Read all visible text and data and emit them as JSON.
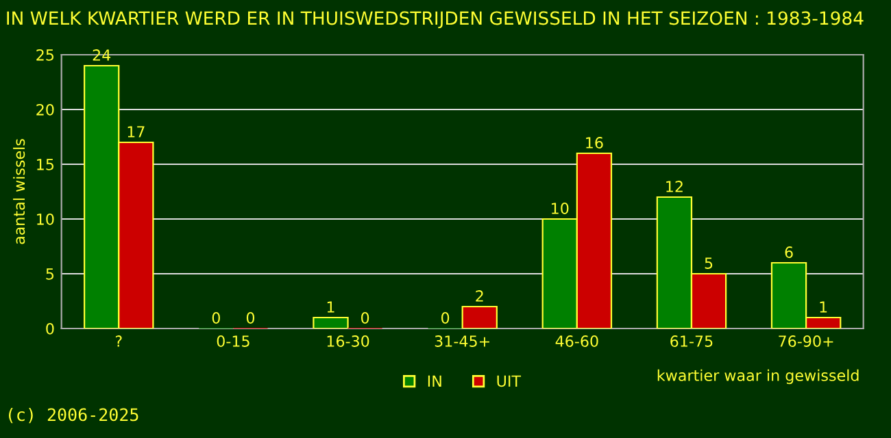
{
  "chart_data": {
    "type": "bar",
    "title": "IN WELK KWARTIER WERD ER IN THUISWEDSTRIJDEN GEWISSELD IN HET SEIZOEN : 1983-1984",
    "xlabel": "kwartier waar in gewisseld",
    "ylabel": "aantal wissels",
    "categories": [
      "?",
      "0-15",
      "16-30",
      "31-45+",
      "46-60",
      "61-75",
      "76-90+"
    ],
    "series": [
      {
        "name": "IN",
        "color": "#008000",
        "values": [
          24,
          0,
          1,
          0,
          10,
          12,
          6
        ]
      },
      {
        "name": "UIT",
        "color": "#cc0000",
        "values": [
          17,
          0,
          0,
          2,
          16,
          5,
          1
        ]
      }
    ],
    "ylim": [
      0,
      25
    ],
    "yticks": [
      0,
      5,
      10,
      15,
      20,
      25
    ],
    "grid": "y",
    "legend": "bottom",
    "data_labels": true,
    "annotations": [
      "(c) 2006-2025"
    ]
  }
}
